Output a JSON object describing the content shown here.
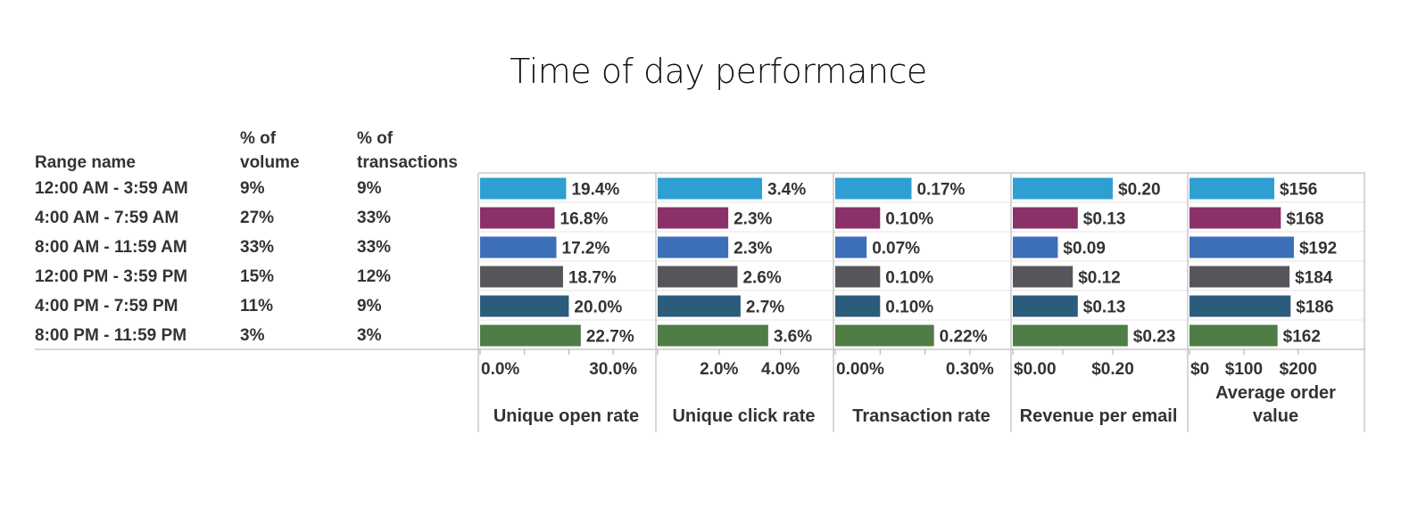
{
  "chart_data": {
    "type": "bar",
    "title": "Time of day performance",
    "columns": {
      "range_name": "Range name",
      "pct_volume": [
        "% of",
        "volume"
      ],
      "pct_transactions": [
        "% of",
        "transactions"
      ]
    },
    "categories": [
      "12:00 AM - 3:59 AM",
      "4:00 AM - 7:59 AM",
      "8:00 AM - 11:59 AM",
      "12:00 PM - 3:59 PM",
      "4:00 PM - 7:59 PM",
      "8:00 PM - 11:59 PM"
    ],
    "pct_volume": [
      "9%",
      "27%",
      "33%",
      "15%",
      "11%",
      "3%"
    ],
    "pct_transactions": [
      "9%",
      "33%",
      "33%",
      "12%",
      "9%",
      "3%"
    ],
    "colors": [
      "#2e9fd3",
      "#8b3068",
      "#3d6fb8",
      "#56565a",
      "#2b5c7b",
      "#4e7d45"
    ],
    "series": [
      {
        "name": "Unique open rate",
        "values": [
          19.4,
          16.8,
          17.2,
          18.7,
          20.0,
          22.7
        ],
        "labels": [
          "19.4%",
          "16.8%",
          "17.2%",
          "18.7%",
          "20.0%",
          "22.7%"
        ],
        "xlim": [
          0,
          35
        ],
        "ticks": [
          0,
          10,
          20,
          30
        ],
        "tick_labels": [
          {
            "v": 0,
            "t": "0.0%"
          },
          {
            "v": 30,
            "t": "30.0%"
          }
        ]
      },
      {
        "name": "Unique click rate",
        "values": [
          3.4,
          2.3,
          2.3,
          2.6,
          2.7,
          3.6
        ],
        "labels": [
          "3.4%",
          "2.3%",
          "2.3%",
          "2.6%",
          "2.7%",
          "3.6%"
        ],
        "xlim": [
          0,
          5
        ],
        "ticks": [
          0,
          2,
          4
        ],
        "tick_labels": [
          {
            "v": 2,
            "t": "2.0%"
          },
          {
            "v": 4,
            "t": "4.0%"
          }
        ]
      },
      {
        "name": "Transaction rate",
        "values": [
          0.17,
          0.1,
          0.07,
          0.1,
          0.1,
          0.22
        ],
        "labels": [
          "0.17%",
          "0.10%",
          "0.07%",
          "0.10%",
          "0.10%",
          "0.22%"
        ],
        "xlim": [
          0,
          0.35
        ],
        "ticks": [
          0,
          0.1,
          0.2,
          0.3
        ],
        "tick_labels": [
          {
            "v": 0,
            "t": "0.00%"
          },
          {
            "v": 0.3,
            "t": "0.30%"
          }
        ]
      },
      {
        "name": "Revenue per email",
        "values": [
          0.2,
          0.13,
          0.09,
          0.12,
          0.13,
          0.23
        ],
        "labels": [
          "$0.20",
          "$0.13",
          "$0.09",
          "$0.12",
          "$0.13",
          "$0.23"
        ],
        "xlim": [
          0,
          0.3
        ],
        "ticks": [
          0,
          0.1,
          0.2
        ],
        "tick_labels": [
          {
            "v": 0,
            "t": "$0.00"
          },
          {
            "v": 0.2,
            "t": "$0.20"
          }
        ]
      },
      {
        "name": "Average order value",
        "values": [
          156,
          168,
          192,
          184,
          186,
          162
        ],
        "labels": [
          "$156",
          "$168",
          "$192",
          "$184",
          "$186",
          "$162"
        ],
        "xlim": [
          0,
          220
        ],
        "ticks": [
          0,
          100,
          200
        ],
        "tick_labels": [
          {
            "v": 0,
            "t": "$0"
          },
          {
            "v": 100,
            "t": "$100"
          },
          {
            "v": 200,
            "t": "$200"
          }
        ]
      }
    ]
  }
}
